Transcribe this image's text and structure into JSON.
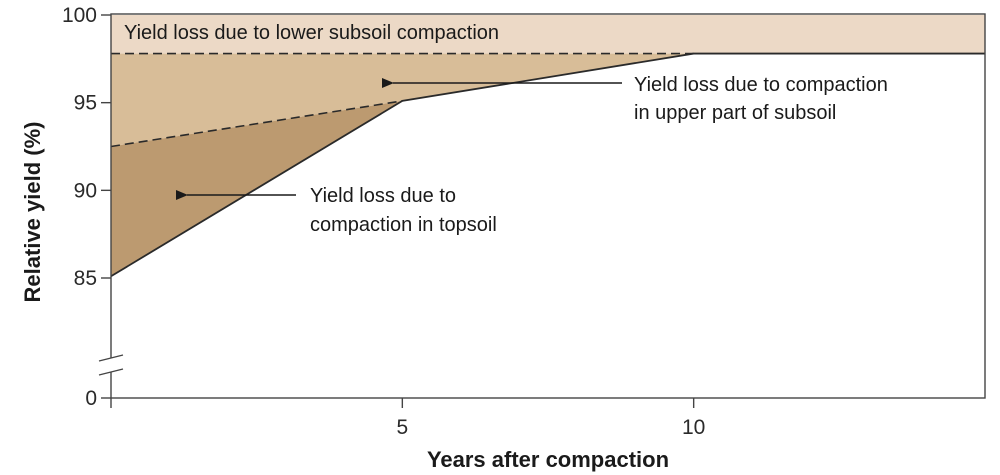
{
  "chart_data": {
    "type": "area",
    "xlabel": "Years after compaction",
    "ylabel": "Relative yield (%)",
    "xlim": [
      0,
      15
    ],
    "x_ticks": [
      {
        "value": 5,
        "label": "5"
      },
      {
        "value": 10,
        "label": "10"
      }
    ],
    "y_axis_break": true,
    "y_ticks": [
      {
        "value": 0,
        "label": "0"
      },
      {
        "value": 85,
        "label": "85"
      },
      {
        "value": 90,
        "label": "90"
      },
      {
        "value": 95,
        "label": "95"
      },
      {
        "value": 100,
        "label": "100"
      }
    ],
    "curves": {
      "total_yield": {
        "x": [
          0,
          5,
          10,
          15
        ],
        "y": [
          85.1,
          95.1,
          97.8,
          97.8
        ]
      },
      "without_topsoil_loss": {
        "x": [
          0,
          5,
          10
        ],
        "y": [
          92.5,
          95.1,
          97.8
        ]
      },
      "without_subsoil_loss": {
        "x": [
          0,
          15
        ],
        "y": [
          97.8,
          97.8
        ]
      }
    },
    "regions": [
      {
        "key": "lower_subsoil",
        "color": "#ecd9c6"
      },
      {
        "key": "upper_subsoil",
        "color": "#d8bd98"
      },
      {
        "key": "topsoil",
        "color": "#bc9a70"
      }
    ],
    "annotations": [
      {
        "key": "lower_subsoil",
        "lines": [
          "Yield loss due to lower subsoil compaction"
        ]
      },
      {
        "key": "upper_subsoil",
        "lines": [
          "Yield loss due to compaction",
          "in upper part of subsoil"
        ]
      },
      {
        "key": "topsoil",
        "lines": [
          "Yield loss due to",
          "compaction in topsoil"
        ]
      }
    ],
    "grid": false,
    "legend": "none"
  }
}
